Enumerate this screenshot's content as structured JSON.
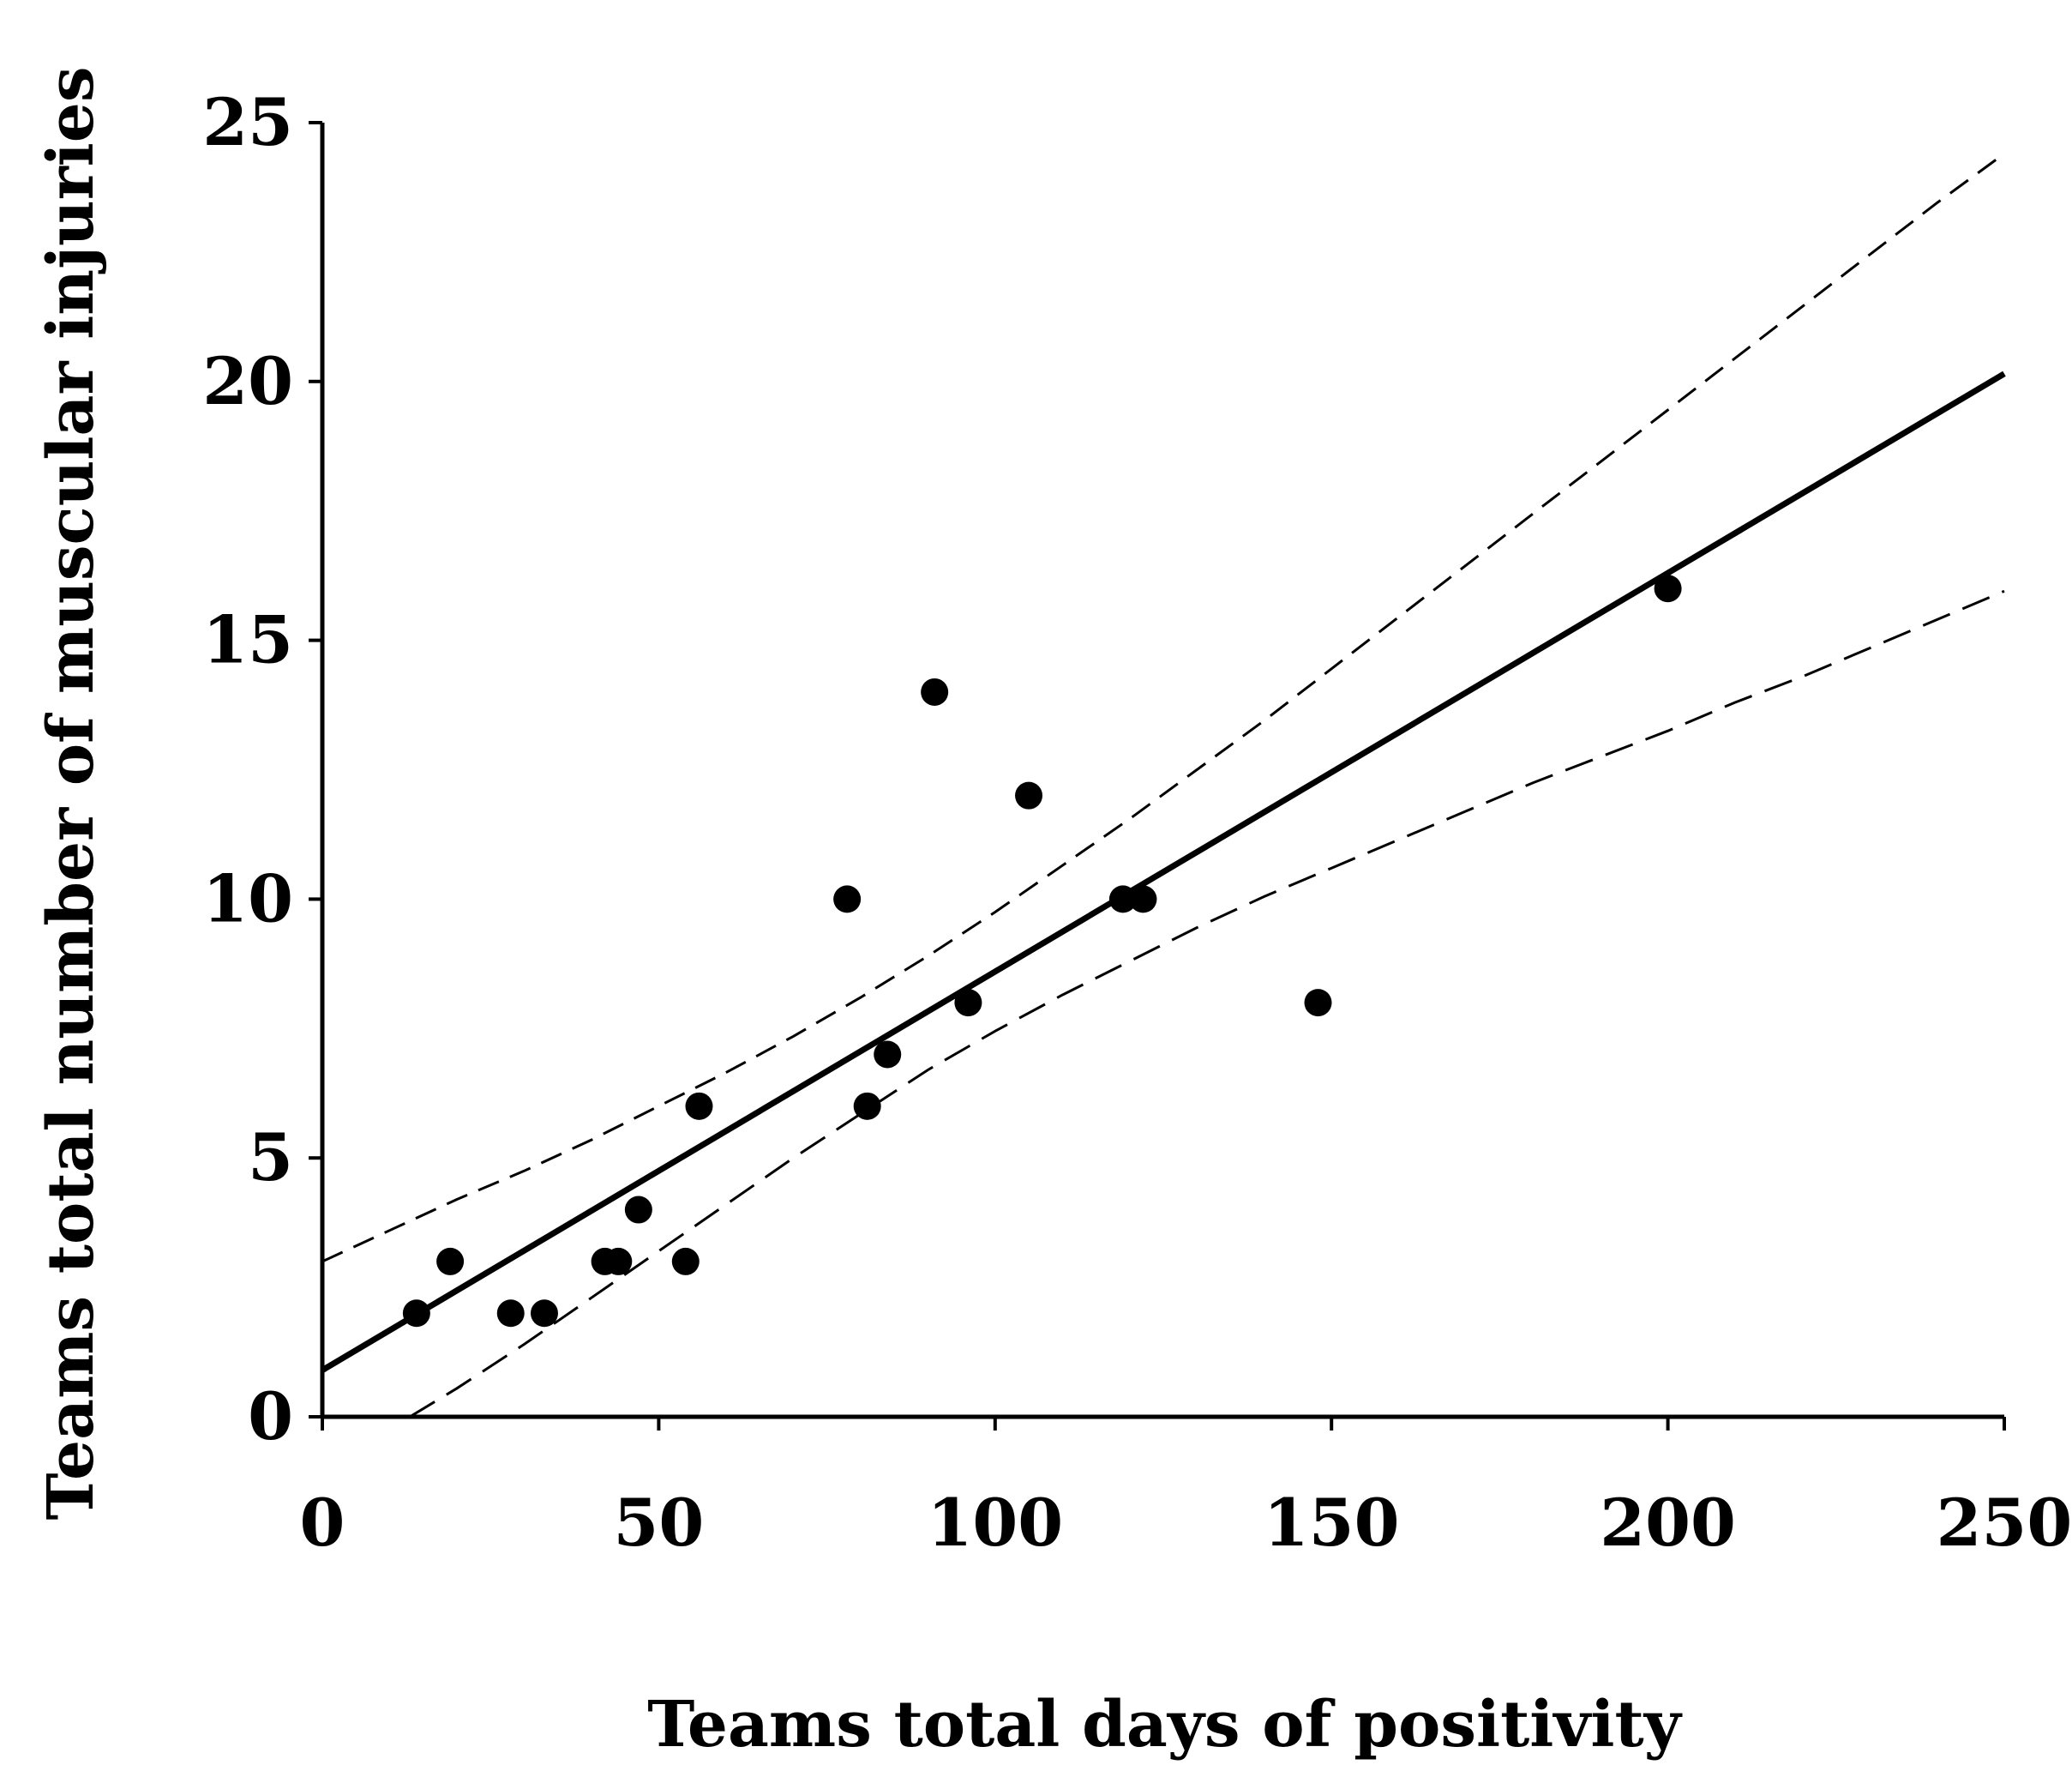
{
  "chart_data": {
    "type": "scatter",
    "title": "",
    "xlabel": "Teams total days of positivity",
    "ylabel": "Teams total number of muscular injuries",
    "xlim": [
      0,
      250
    ],
    "ylim": [
      0,
      25
    ],
    "xticks": [
      0,
      50,
      100,
      150,
      200,
      250
    ],
    "yticks": [
      0,
      5,
      10,
      15,
      20,
      25
    ],
    "grid": false,
    "legend": "none",
    "points": [
      {
        "x": 14,
        "y": 2
      },
      {
        "x": 19,
        "y": 3
      },
      {
        "x": 28,
        "y": 2
      },
      {
        "x": 33,
        "y": 2
      },
      {
        "x": 42,
        "y": 3
      },
      {
        "x": 44,
        "y": 3
      },
      {
        "x": 47,
        "y": 4
      },
      {
        "x": 54,
        "y": 3
      },
      {
        "x": 56,
        "y": 6
      },
      {
        "x": 78,
        "y": 10
      },
      {
        "x": 81,
        "y": 6
      },
      {
        "x": 84,
        "y": 7
      },
      {
        "x": 91,
        "y": 14
      },
      {
        "x": 96,
        "y": 8
      },
      {
        "x": 105,
        "y": 12
      },
      {
        "x": 119,
        "y": 10
      },
      {
        "x": 122,
        "y": 10
      },
      {
        "x": 148,
        "y": 8
      },
      {
        "x": 200,
        "y": 16
      }
    ],
    "regression_line": {
      "x": [
        0,
        250
      ],
      "y": [
        0.9,
        20.15
      ]
    },
    "confidence_band_upper": {
      "x": [
        0,
        10,
        20,
        30,
        40,
        50,
        60,
        70,
        80,
        90,
        100,
        110,
        120,
        130,
        140,
        150,
        160,
        170,
        180,
        190,
        200,
        210,
        220,
        230,
        240,
        250
      ],
      "y": [
        3.0,
        3.6,
        4.2,
        4.75,
        5.35,
        6.0,
        6.65,
        7.35,
        8.1,
        8.9,
        9.75,
        10.65,
        11.55,
        12.5,
        13.45,
        14.45,
        15.45,
        16.45,
        17.45,
        18.45,
        19.45,
        20.45,
        21.45,
        22.45,
        23.45,
        24.4
      ]
    },
    "confidence_band_lower": {
      "x": [
        13,
        20,
        30,
        40,
        50,
        60,
        70,
        80,
        90,
        100,
        110,
        120,
        130,
        140,
        150,
        160,
        170,
        180,
        190,
        200,
        210,
        220,
        230,
        240,
        250
      ],
      "y": [
        0.0,
        0.55,
        1.4,
        2.3,
        3.2,
        4.1,
        5.0,
        5.85,
        6.7,
        7.45,
        8.15,
        8.8,
        9.45,
        10.05,
        10.6,
        11.15,
        11.7,
        12.25,
        12.75,
        13.25,
        13.8,
        14.3,
        14.85,
        15.4,
        15.95
      ]
    }
  }
}
